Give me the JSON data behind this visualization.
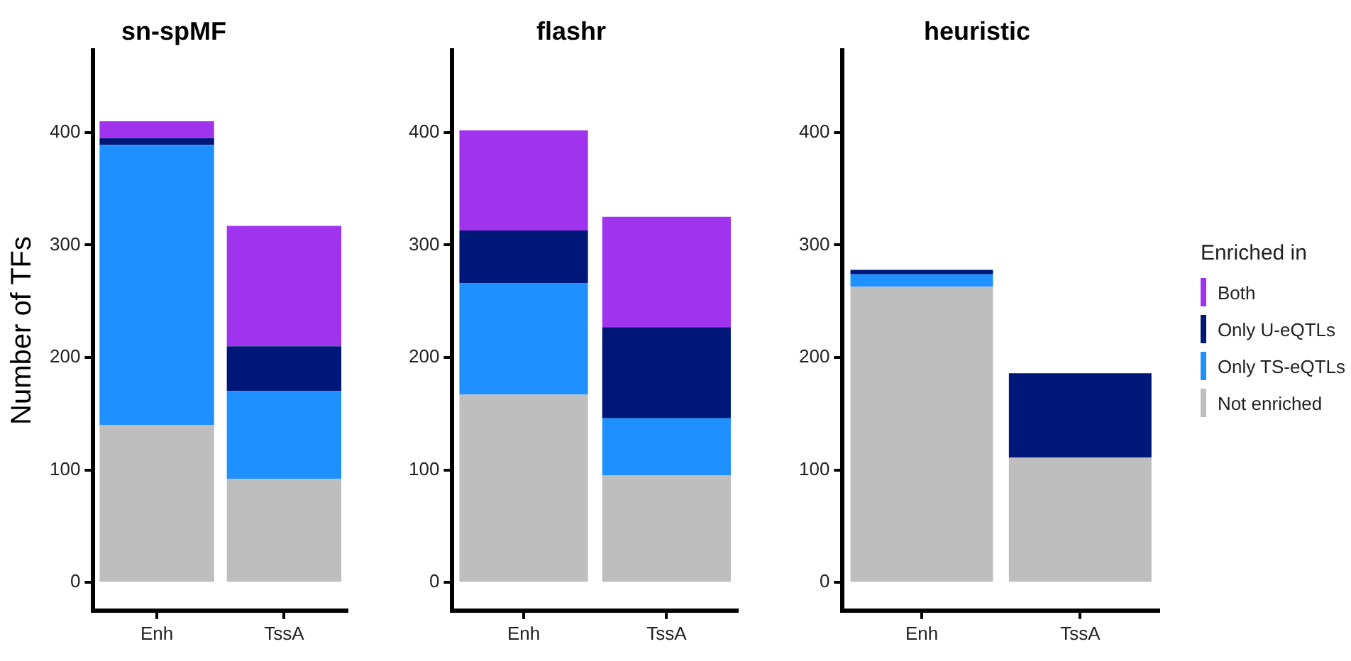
{
  "chart_data": [
    {
      "type": "bar",
      "title": "sn-spMF",
      "ylabel": "Number of TFs",
      "categories": [
        "Enh",
        "TssA"
      ],
      "stacked": true,
      "grid": false,
      "legend": false,
      "ylim": [
        -25,
        473
      ],
      "yticks": [
        0,
        100,
        200,
        300,
        400
      ],
      "series": [
        {
          "color": "#bebebe",
          "values": [
            140,
            92
          ]
        },
        {
          "color": "#1e90ff",
          "values": [
            249,
            78
          ]
        },
        {
          "color": "#00177a",
          "values": [
            6,
            40
          ]
        },
        {
          "color": "#a033ee",
          "values": [
            15,
            107
          ]
        }
      ]
    },
    {
      "type": "bar",
      "title": "flashr",
      "categories": [
        "Enh",
        "TssA"
      ],
      "stacked": true,
      "grid": false,
      "legend": false,
      "ylim": [
        -25,
        473
      ],
      "yticks": [
        0,
        100,
        200,
        300,
        400
      ],
      "series": [
        {
          "color": "#bebebe",
          "values": [
            167,
            95
          ]
        },
        {
          "color": "#1e90ff",
          "values": [
            99,
            51
          ]
        },
        {
          "color": "#00177a",
          "values": [
            47,
            81
          ]
        },
        {
          "color": "#a033ee",
          "values": [
            89,
            98
          ]
        }
      ]
    },
    {
      "type": "bar",
      "title": "heuristic",
      "legend_title": "Enriched in",
      "categories": [
        "Enh",
        "TssA"
      ],
      "stacked": true,
      "grid": false,
      "legend": "right",
      "ylim": [
        -25,
        473
      ],
      "yticks": [
        0,
        100,
        200,
        300,
        400
      ],
      "series": [
        {
          "name": "Not enriched",
          "color": "#bebebe",
          "values": [
            263,
            111
          ]
        },
        {
          "name": "Only TS-eQTLs",
          "color": "#1e90ff",
          "values": [
            11,
            0
          ]
        },
        {
          "name": "Only U-eQTLs",
          "color": "#00177a",
          "values": [
            4,
            75
          ]
        },
        {
          "name": "Both",
          "color": "#a033ee",
          "values": [
            0,
            0
          ]
        }
      ]
    }
  ]
}
